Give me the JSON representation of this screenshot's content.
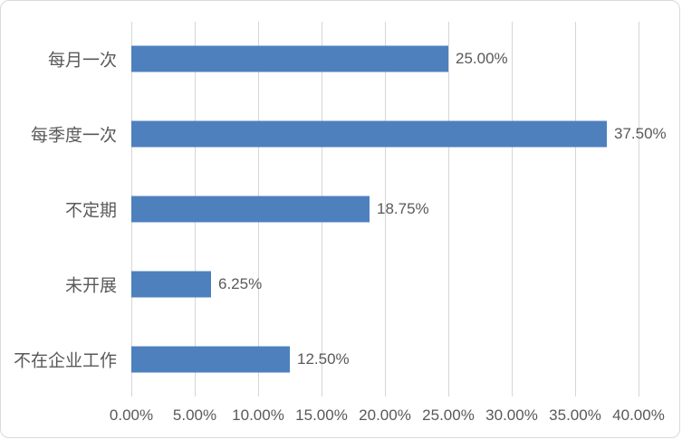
{
  "chart_data": {
    "type": "bar",
    "orientation": "horizontal",
    "title": "",
    "categories": [
      "每月一次",
      "每季度一次",
      "不定期",
      "未开展",
      "不在企业工作"
    ],
    "values": [
      25.0,
      37.5,
      18.75,
      6.25,
      12.5
    ],
    "data_labels": [
      "25.00%",
      "37.50%",
      "18.75%",
      "6.25%",
      "12.50%"
    ],
    "x_tick_labels": [
      "0.00%",
      "5.00%",
      "10.00%",
      "15.00%",
      "20.00%",
      "25.00%",
      "30.00%",
      "35.00%",
      "40.00%"
    ],
    "xlim": [
      0,
      40
    ],
    "xlabel": "",
    "ylabel": "",
    "legend": "none",
    "grid": "vertical",
    "colors": {
      "bar": "#4E80BE",
      "gridline": "#D6D6D6",
      "text": "#595959",
      "frame_border": "#D9D9D9",
      "background": "#FFFFFF"
    }
  }
}
